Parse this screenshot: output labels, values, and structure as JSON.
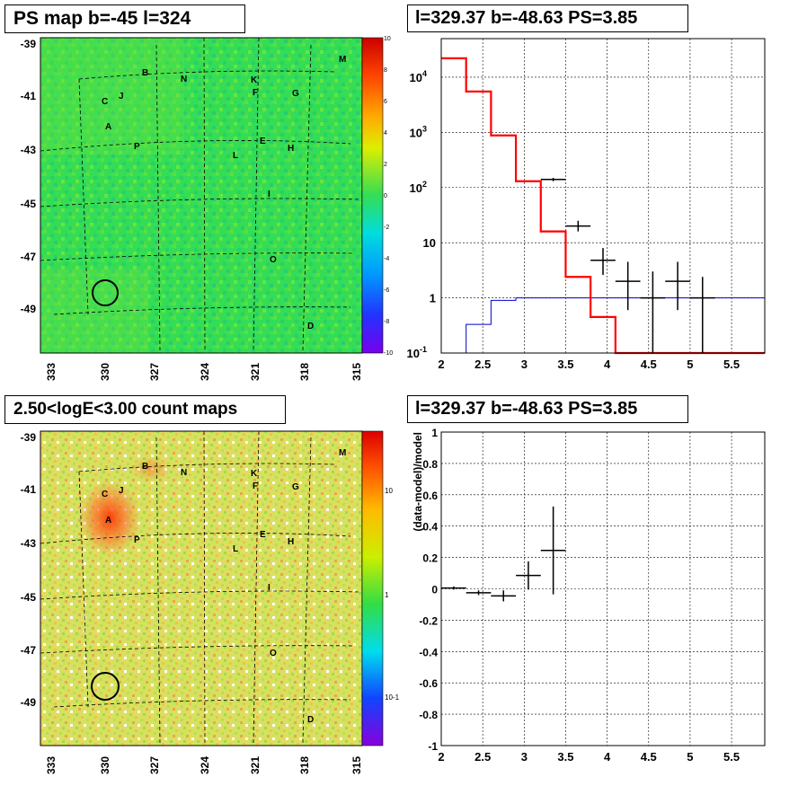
{
  "panels": {
    "tl_title": "PS map b=-45 l=324",
    "tr_title": "l=329.37 b=-48.63 PS=3.85",
    "bl_title": "2.50<logE<3.00 count maps",
    "br_title": "l=329.37 b=-48.63 PS=3.85"
  },
  "colors": {
    "model": "#ff0000",
    "background_model": "#0000cc",
    "data": "#000000",
    "ps_map_base": "#33dd55",
    "count_map_base": "#d8e060"
  },
  "maps": {
    "b_ticks": [
      "-39",
      "-41",
      "-43",
      "-45",
      "-47",
      "-49"
    ],
    "l_ticks": [
      "333",
      "330",
      "327",
      "324",
      "321",
      "318",
      "315"
    ],
    "sources": [
      {
        "label": "A"
      },
      {
        "label": "B"
      },
      {
        "label": "C"
      },
      {
        "label": "J"
      },
      {
        "label": "N"
      },
      {
        "label": "K"
      },
      {
        "label": "F"
      },
      {
        "label": "G"
      },
      {
        "label": "M"
      },
      {
        "label": "P"
      },
      {
        "label": "E"
      },
      {
        "label": "H"
      },
      {
        "label": "L"
      },
      {
        "label": "I"
      },
      {
        "label": "O"
      },
      {
        "label": "D"
      }
    ],
    "ps_colorbar_ticks": [
      "10",
      "8",
      "6",
      "4",
      "2",
      "0",
      "-2",
      "-4",
      "-6",
      "-8",
      "-10"
    ],
    "count_colorbar_ticks": [
      "10",
      "1",
      "10-1"
    ]
  },
  "chart_data": [
    {
      "type": "line",
      "title": "l=329.37 b=-48.63 PS=3.85",
      "xlim": [
        2,
        5.9
      ],
      "ylim": [
        0.1,
        50000
      ],
      "yscale": "log",
      "grid": true,
      "x_ticks": [
        "2",
        "2.5",
        "3",
        "3.5",
        "4",
        "4.5",
        "5",
        "5.5"
      ],
      "y_ticks": [
        "10^-1",
        "1",
        "10",
        "10^2",
        "10^3",
        "10^4"
      ],
      "bin_edges": [
        2.0,
        2.3,
        2.6,
        2.9,
        3.2,
        3.5,
        3.8,
        4.1,
        4.4,
        4.7,
        5.0,
        5.3,
        5.6,
        5.9
      ],
      "series": [
        {
          "role": "model",
          "values": [
            22000,
            5500,
            880,
            130,
            16,
            2.4,
            0.45,
            0.1,
            0.1,
            0.1,
            0.1,
            0.1,
            0.1
          ]
        },
        {
          "role": "background",
          "values": [
            0.1,
            0.33,
            0.9,
            1.0,
            1.0,
            1.0,
            1.0,
            1.0,
            1.0,
            1.0,
            1.0,
            1.0,
            1.0
          ]
        },
        {
          "role": "data",
          "points": [
            {
              "x": 3.35,
              "y": 140,
              "lo": 130,
              "hi": 150
            },
            {
              "x": 3.65,
              "y": 20,
              "lo": 16,
              "hi": 25
            },
            {
              "x": 3.95,
              "y": 4.8,
              "lo": 2.6,
              "hi": 8.0
            },
            {
              "x": 4.25,
              "y": 2.0,
              "lo": 0.6,
              "hi": 4.5
            },
            {
              "x": 4.55,
              "y": 1.0,
              "lo": 0.1,
              "hi": 3.0
            },
            {
              "x": 4.85,
              "y": 2.0,
              "lo": 0.6,
              "hi": 4.5
            },
            {
              "x": 5.15,
              "y": 1.0,
              "lo": 0.1,
              "hi": 2.4
            }
          ]
        }
      ]
    },
    {
      "type": "scatter",
      "title": "l=329.37 b=-48.63 PS=3.85",
      "ylabel": "(data-model)/model",
      "xlim": [
        2,
        5.9
      ],
      "ylim": [
        -1,
        1
      ],
      "grid": true,
      "x_ticks": [
        "2",
        "2.5",
        "3",
        "3.5",
        "4",
        "4.5",
        "5",
        "5.5"
      ],
      "y_ticks": [
        "1",
        "0.8",
        "0.6",
        "0.4",
        "0.2",
        "0",
        "-0.2",
        "-0.4",
        "-0.6",
        "-0.8",
        "-1"
      ],
      "points": [
        {
          "x": 2.15,
          "y": 0.005,
          "xerr": 0.15,
          "yerr": 0.01
        },
        {
          "x": 2.45,
          "y": -0.025,
          "xerr": 0.15,
          "yerr": 0.015
        },
        {
          "x": 2.75,
          "y": -0.045,
          "xerr": 0.15,
          "yerr": 0.035
        },
        {
          "x": 3.05,
          "y": 0.085,
          "xerr": 0.15,
          "yerr": 0.09
        },
        {
          "x": 3.35,
          "y": 0.245,
          "xerr": 0.15,
          "yerr": 0.28
        }
      ]
    }
  ]
}
